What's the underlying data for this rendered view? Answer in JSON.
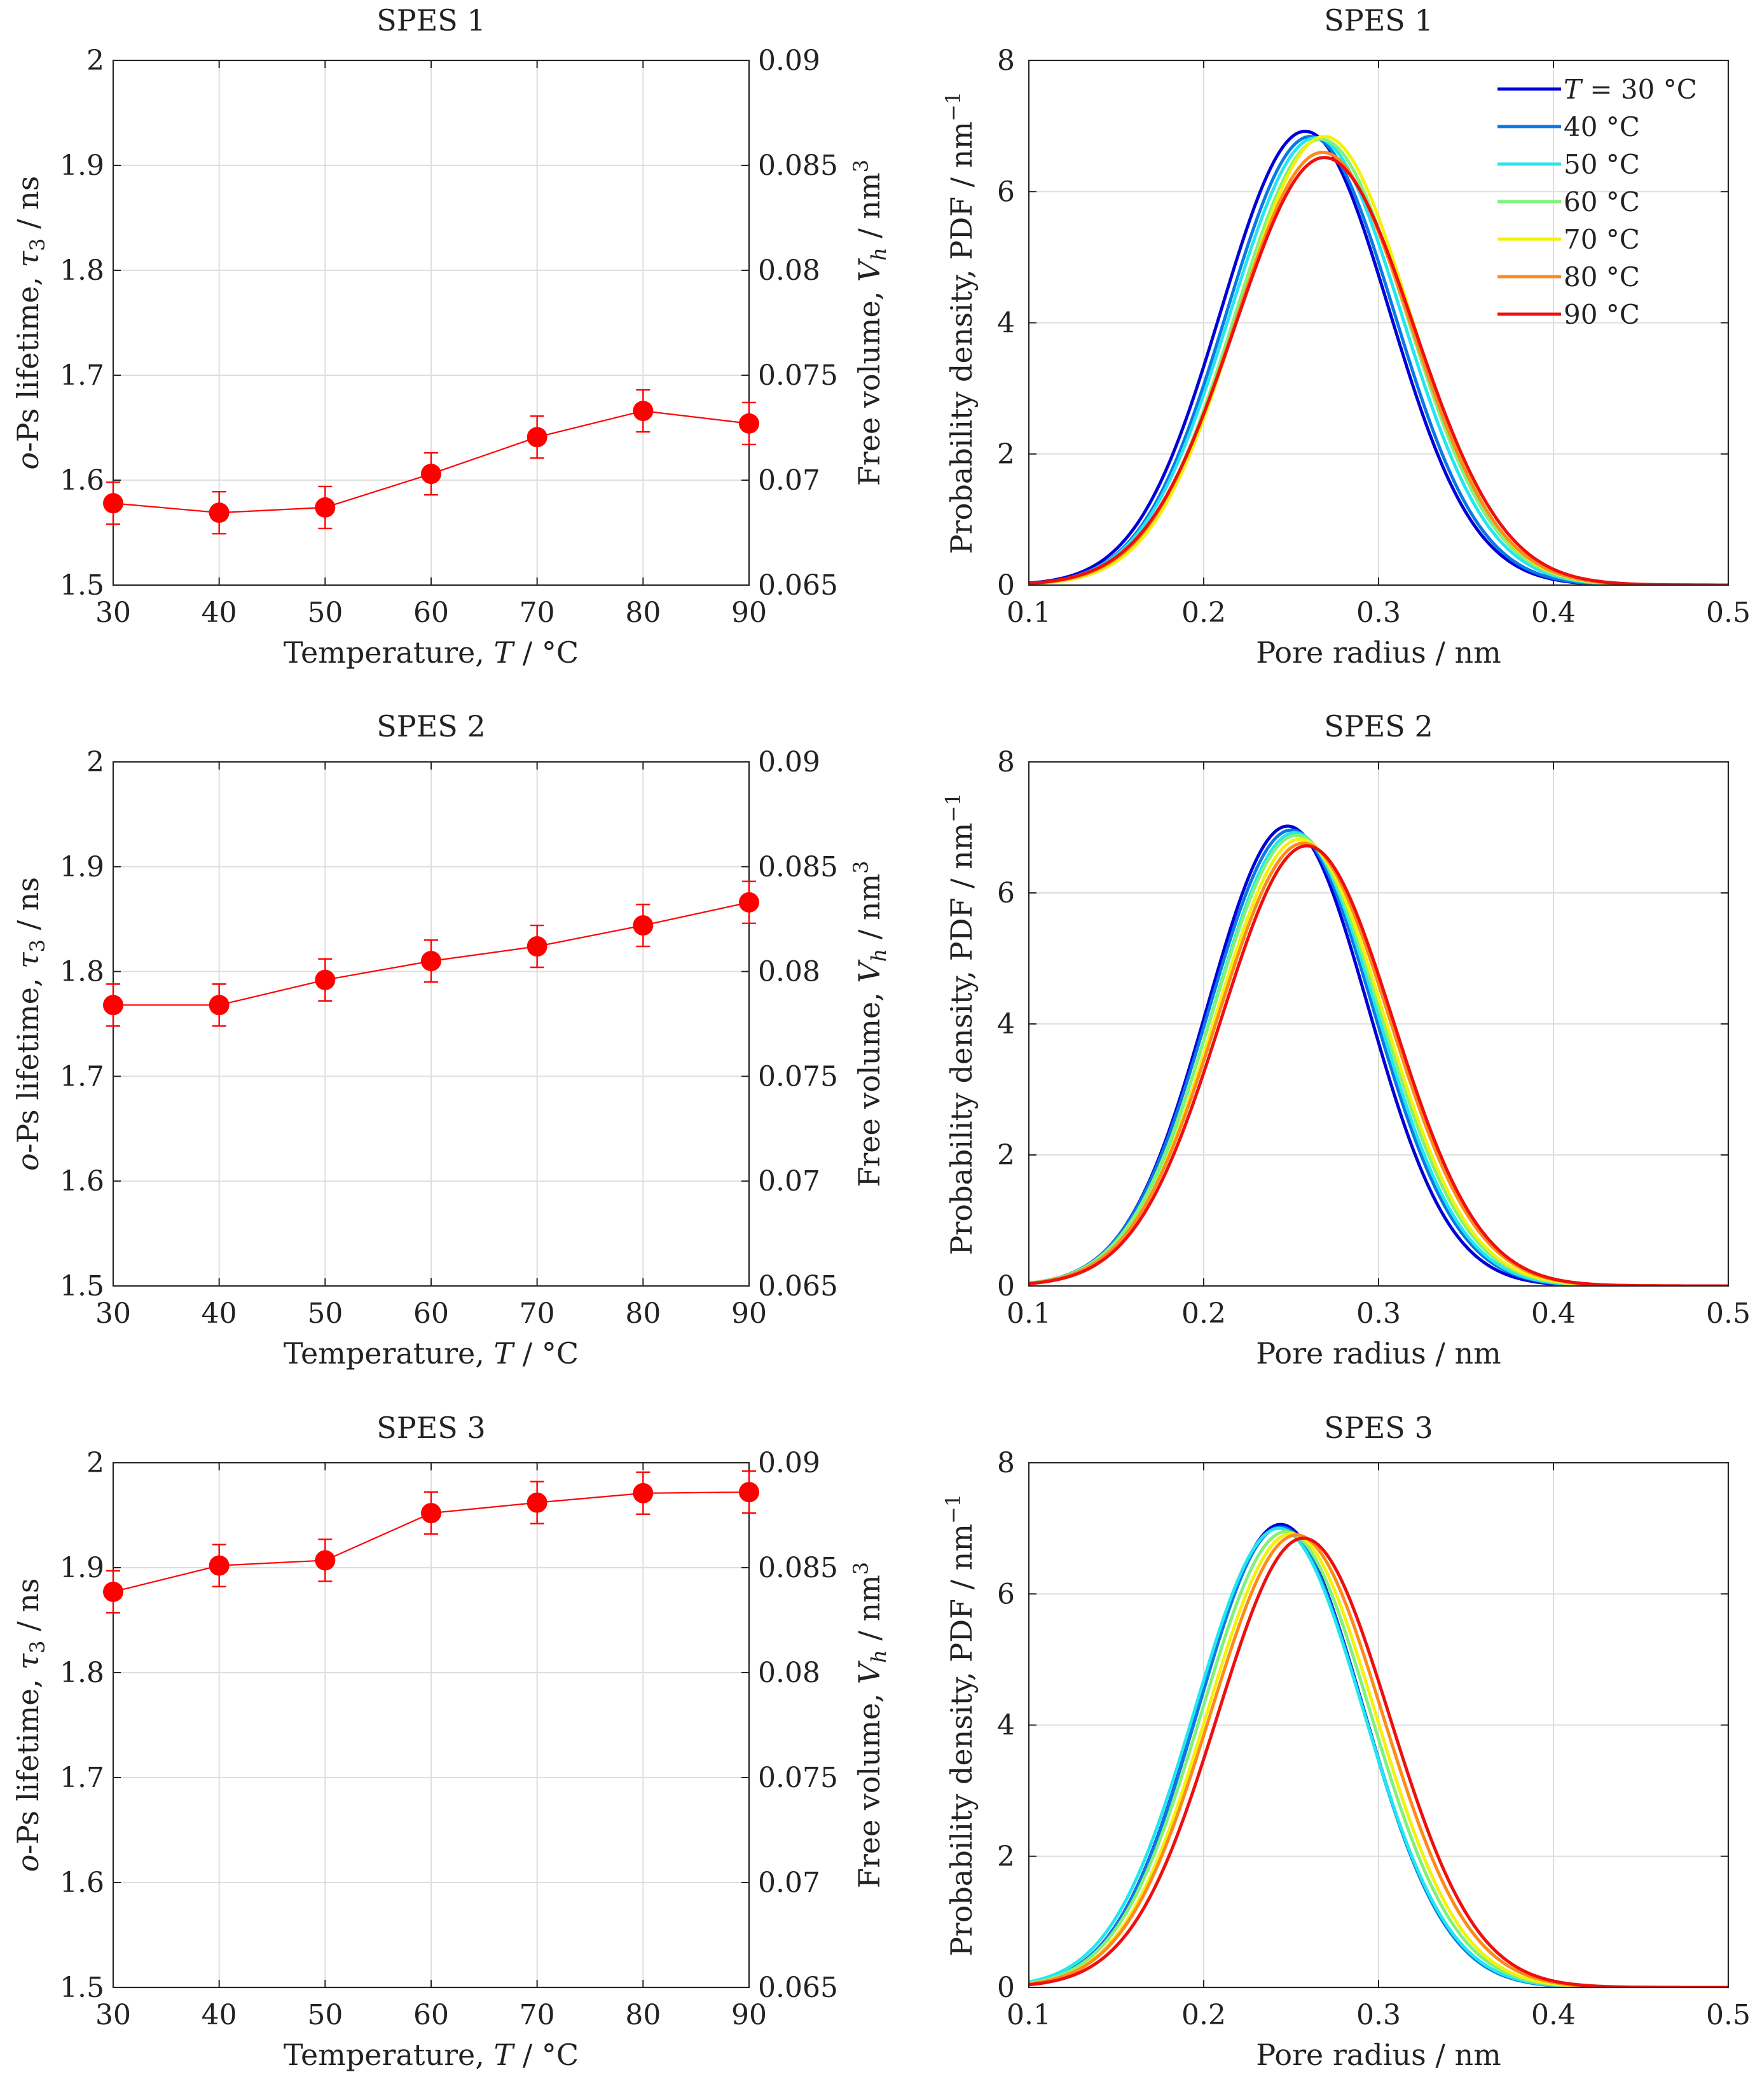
{
  "colors": {
    "point": "#ff0000",
    "series": [
      "#0000d6",
      "#0a78e6",
      "#22e6f0",
      "#7ff27a",
      "#f2f20a",
      "#ff8a1a",
      "#ee1010"
    ]
  },
  "chart_data": [
    {
      "type": "scatter",
      "title": "SPES 1",
      "xlabel": "Temperature, T / °C",
      "ylabel": "o-Ps lifetime, τ3 / ns",
      "y2label": "Free volume, Vh / nm3",
      "xlim": [
        30,
        90
      ],
      "ylim": [
        1.5,
        2.0
      ],
      "y2lim": [
        0.065,
        0.09
      ],
      "x_ticks": [
        30,
        40,
        50,
        60,
        70,
        80,
        90
      ],
      "y_ticks": [
        1.5,
        1.6,
        1.7,
        1.8,
        1.9,
        2
      ],
      "y2_ticks": [
        0.065,
        0.07,
        0.075,
        0.08,
        0.085,
        0.09
      ],
      "x_tick_labels": [
        "30",
        "40",
        "50",
        "60",
        "70",
        "80",
        "90"
      ],
      "y_tick_labels": [
        "1.5",
        "1.6",
        "1.7",
        "1.8",
        "1.9",
        "2"
      ],
      "y2_tick_labels": [
        "0.065",
        "0.07",
        "0.075",
        "0.08",
        "0.085",
        "0.09"
      ],
      "grid": true,
      "x": [
        30,
        40,
        50,
        60,
        70,
        80,
        90
      ],
      "y": [
        1.578,
        1.569,
        1.574,
        1.606,
        1.641,
        1.666,
        1.654
      ],
      "yerr": [
        0.02,
        0.02,
        0.02,
        0.02,
        0.02,
        0.02,
        0.02
      ]
    },
    {
      "type": "line",
      "title": "SPES 1",
      "xlabel": "Pore radius / nm",
      "ylabel": "Probability density, PDF / nm−1",
      "xlim": [
        0.1,
        0.5
      ],
      "ylim": [
        0,
        8
      ],
      "x_ticks": [
        0.1,
        0.2,
        0.3,
        0.4,
        0.5
      ],
      "y_ticks": [
        0,
        2,
        4,
        6,
        8
      ],
      "x_tick_labels": [
        "0.1",
        "0.2",
        "0.3",
        "0.4",
        "0.5"
      ],
      "y_tick_labels": [
        "0",
        "2",
        "4",
        "6",
        "8"
      ],
      "grid": true,
      "legend_position": "top-right",
      "series": [
        {
          "name": "T = 30 °C",
          "peak_x": 0.258,
          "peak_y": 6.92,
          "width": 0.048
        },
        {
          "name": "40 °C",
          "peak_x": 0.261,
          "peak_y": 6.84,
          "width": 0.048
        },
        {
          "name": "50 °C",
          "peak_x": 0.264,
          "peak_y": 6.82,
          "width": 0.049
        },
        {
          "name": "60 °C",
          "peak_x": 0.267,
          "peak_y": 6.8,
          "width": 0.049
        },
        {
          "name": "70 °C",
          "peak_x": 0.269,
          "peak_y": 6.84,
          "width": 0.049
        },
        {
          "name": "80 °C",
          "peak_x": 0.268,
          "peak_y": 6.6,
          "width": 0.05
        },
        {
          "name": "90 °C",
          "peak_x": 0.269,
          "peak_y": 6.52,
          "width": 0.051
        }
      ]
    },
    {
      "type": "scatter",
      "title": "SPES 2",
      "xlabel": "Temperature, T / °C",
      "ylabel": "o-Ps lifetime, τ3 / ns",
      "y2label": "Free volume, Vh / nm3",
      "xlim": [
        30,
        90
      ],
      "ylim": [
        1.5,
        2.0
      ],
      "y2lim": [
        0.065,
        0.09
      ],
      "x_ticks": [
        30,
        40,
        50,
        60,
        70,
        80,
        90
      ],
      "y_ticks": [
        1.5,
        1.6,
        1.7,
        1.8,
        1.9,
        2
      ],
      "y2_ticks": [
        0.065,
        0.07,
        0.075,
        0.08,
        0.085,
        0.09
      ],
      "x_tick_labels": [
        "30",
        "40",
        "50",
        "60",
        "70",
        "80",
        "90"
      ],
      "y_tick_labels": [
        "1.5",
        "1.6",
        "1.7",
        "1.8",
        "1.9",
        "2"
      ],
      "y2_tick_labels": [
        "0.065",
        "0.07",
        "0.075",
        "0.08",
        "0.085",
        "0.09"
      ],
      "grid": true,
      "x": [
        30,
        40,
        50,
        60,
        70,
        80,
        90
      ],
      "y": [
        1.768,
        1.768,
        1.792,
        1.81,
        1.824,
        1.844,
        1.866
      ],
      "yerr": [
        0.02,
        0.02,
        0.02,
        0.02,
        0.02,
        0.02,
        0.02
      ]
    },
    {
      "type": "line",
      "title": "SPES 2",
      "xlabel": "Pore radius / nm",
      "ylabel": "Probability density, PDF / nm−1",
      "xlim": [
        0.1,
        0.5
      ],
      "ylim": [
        0,
        8
      ],
      "x_ticks": [
        0.1,
        0.2,
        0.3,
        0.4,
        0.5
      ],
      "y_ticks": [
        0,
        2,
        4,
        6,
        8
      ],
      "x_tick_labels": [
        "0.1",
        "0.2",
        "0.3",
        "0.4",
        "0.5"
      ],
      "y_tick_labels": [
        "0",
        "2",
        "4",
        "6",
        "8"
      ],
      "grid": true,
      "series": [
        {
          "name": "T = 30 °C",
          "peak_x": 0.248,
          "peak_y": 7.02,
          "width": 0.046
        },
        {
          "name": "40 °C",
          "peak_x": 0.25,
          "peak_y": 6.96,
          "width": 0.047
        },
        {
          "name": "50 °C",
          "peak_x": 0.252,
          "peak_y": 6.92,
          "width": 0.047
        },
        {
          "name": "60 °C",
          "peak_x": 0.253,
          "peak_y": 6.88,
          "width": 0.048
        },
        {
          "name": "70 °C",
          "peak_x": 0.255,
          "peak_y": 6.82,
          "width": 0.048
        },
        {
          "name": "80 °C",
          "peak_x": 0.257,
          "peak_y": 6.76,
          "width": 0.049
        },
        {
          "name": "90 °C",
          "peak_x": 0.259,
          "peak_y": 6.72,
          "width": 0.049
        }
      ]
    },
    {
      "type": "scatter",
      "title": "SPES 3",
      "xlabel": "Temperature, T / °C",
      "ylabel": "o-Ps lifetime, τ3 / ns",
      "y2label": "Free volume, Vh / nm3",
      "xlim": [
        30,
        90
      ],
      "ylim": [
        1.5,
        2.0
      ],
      "y2lim": [
        0.065,
        0.09
      ],
      "x_ticks": [
        30,
        40,
        50,
        60,
        70,
        80,
        90
      ],
      "y_ticks": [
        1.5,
        1.6,
        1.7,
        1.8,
        1.9,
        2
      ],
      "y2_ticks": [
        0.065,
        0.07,
        0.075,
        0.08,
        0.085,
        0.09
      ],
      "x_tick_labels": [
        "30",
        "40",
        "50",
        "60",
        "70",
        "80",
        "90"
      ],
      "y_tick_labels": [
        "1.5",
        "1.6",
        "1.7",
        "1.8",
        "1.9",
        "2"
      ],
      "y2_tick_labels": [
        "0.065",
        "0.07",
        "0.075",
        "0.08",
        "0.085",
        "0.09"
      ],
      "grid": true,
      "x": [
        30,
        40,
        50,
        60,
        70,
        80,
        90
      ],
      "y": [
        1.877,
        1.902,
        1.907,
        1.952,
        1.962,
        1.971,
        1.972
      ],
      "yerr": [
        0.02,
        0.02,
        0.02,
        0.02,
        0.02,
        0.02,
        0.02
      ]
    },
    {
      "type": "line",
      "title": "SPES 3",
      "xlabel": "Pore radius / nm",
      "ylabel": "Probability density, PDF / nm−1",
      "xlim": [
        0.1,
        0.5
      ],
      "ylim": [
        0,
        8
      ],
      "x_ticks": [
        0.1,
        0.2,
        0.3,
        0.4,
        0.5
      ],
      "y_ticks": [
        0,
        2,
        4,
        6,
        8
      ],
      "x_tick_labels": [
        "0.1",
        "0.2",
        "0.3",
        "0.4",
        "0.5"
      ],
      "y_tick_labels": [
        "0",
        "2",
        "4",
        "6",
        "8"
      ],
      "grid": true,
      "series": [
        {
          "name": "T = 30 °C",
          "peak_x": 0.244,
          "peak_y": 7.06,
          "width": 0.047
        },
        {
          "name": "40 °C",
          "peak_x": 0.244,
          "peak_y": 7.02,
          "width": 0.047
        },
        {
          "name": "50 °C",
          "peak_x": 0.243,
          "peak_y": 7.0,
          "width": 0.048
        },
        {
          "name": "60 °C",
          "peak_x": 0.247,
          "peak_y": 6.95,
          "width": 0.048
        },
        {
          "name": "70 °C",
          "peak_x": 0.25,
          "peak_y": 6.92,
          "width": 0.048
        },
        {
          "name": "80 °C",
          "peak_x": 0.253,
          "peak_y": 6.9,
          "width": 0.049
        },
        {
          "name": "90 °C",
          "peak_x": 0.257,
          "peak_y": 6.85,
          "width": 0.049
        }
      ]
    }
  ]
}
